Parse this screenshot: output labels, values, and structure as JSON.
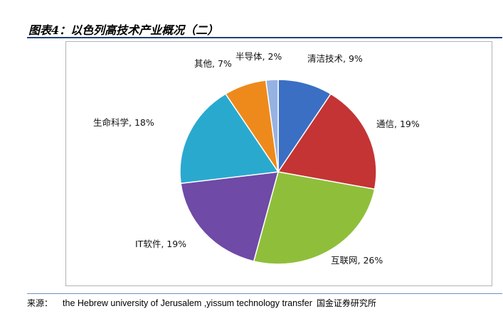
{
  "header": {
    "title": "图表4：以色列高技术产业概况（二）"
  },
  "chart_data": {
    "type": "pie",
    "title": "",
    "slices": [
      {
        "label": "清洁技术, 9%",
        "value": 9,
        "color": "#3a6fc4"
      },
      {
        "label": "通信, 19%",
        "value": 19,
        "color": "#c43434"
      },
      {
        "label": "互联网, 26%",
        "value": 26,
        "color": "#8fbf3a"
      },
      {
        "label": "IT软件, 19%",
        "value": 19,
        "color": "#6f4aa6"
      },
      {
        "label": "生命科学, 18%",
        "value": 18,
        "color": "#2aa9cf"
      },
      {
        "label": "其他, 7%",
        "value": 7,
        "color": "#ee8a1c"
      },
      {
        "label": "半导体, 2%",
        "value": 2,
        "color": "#96b2e2"
      }
    ]
  },
  "footer": {
    "source_label": "来源：",
    "source_text": "the Hebrew university of Jerusalem ,yissum technology transfer",
    "source_org": "国金证券研究所"
  }
}
